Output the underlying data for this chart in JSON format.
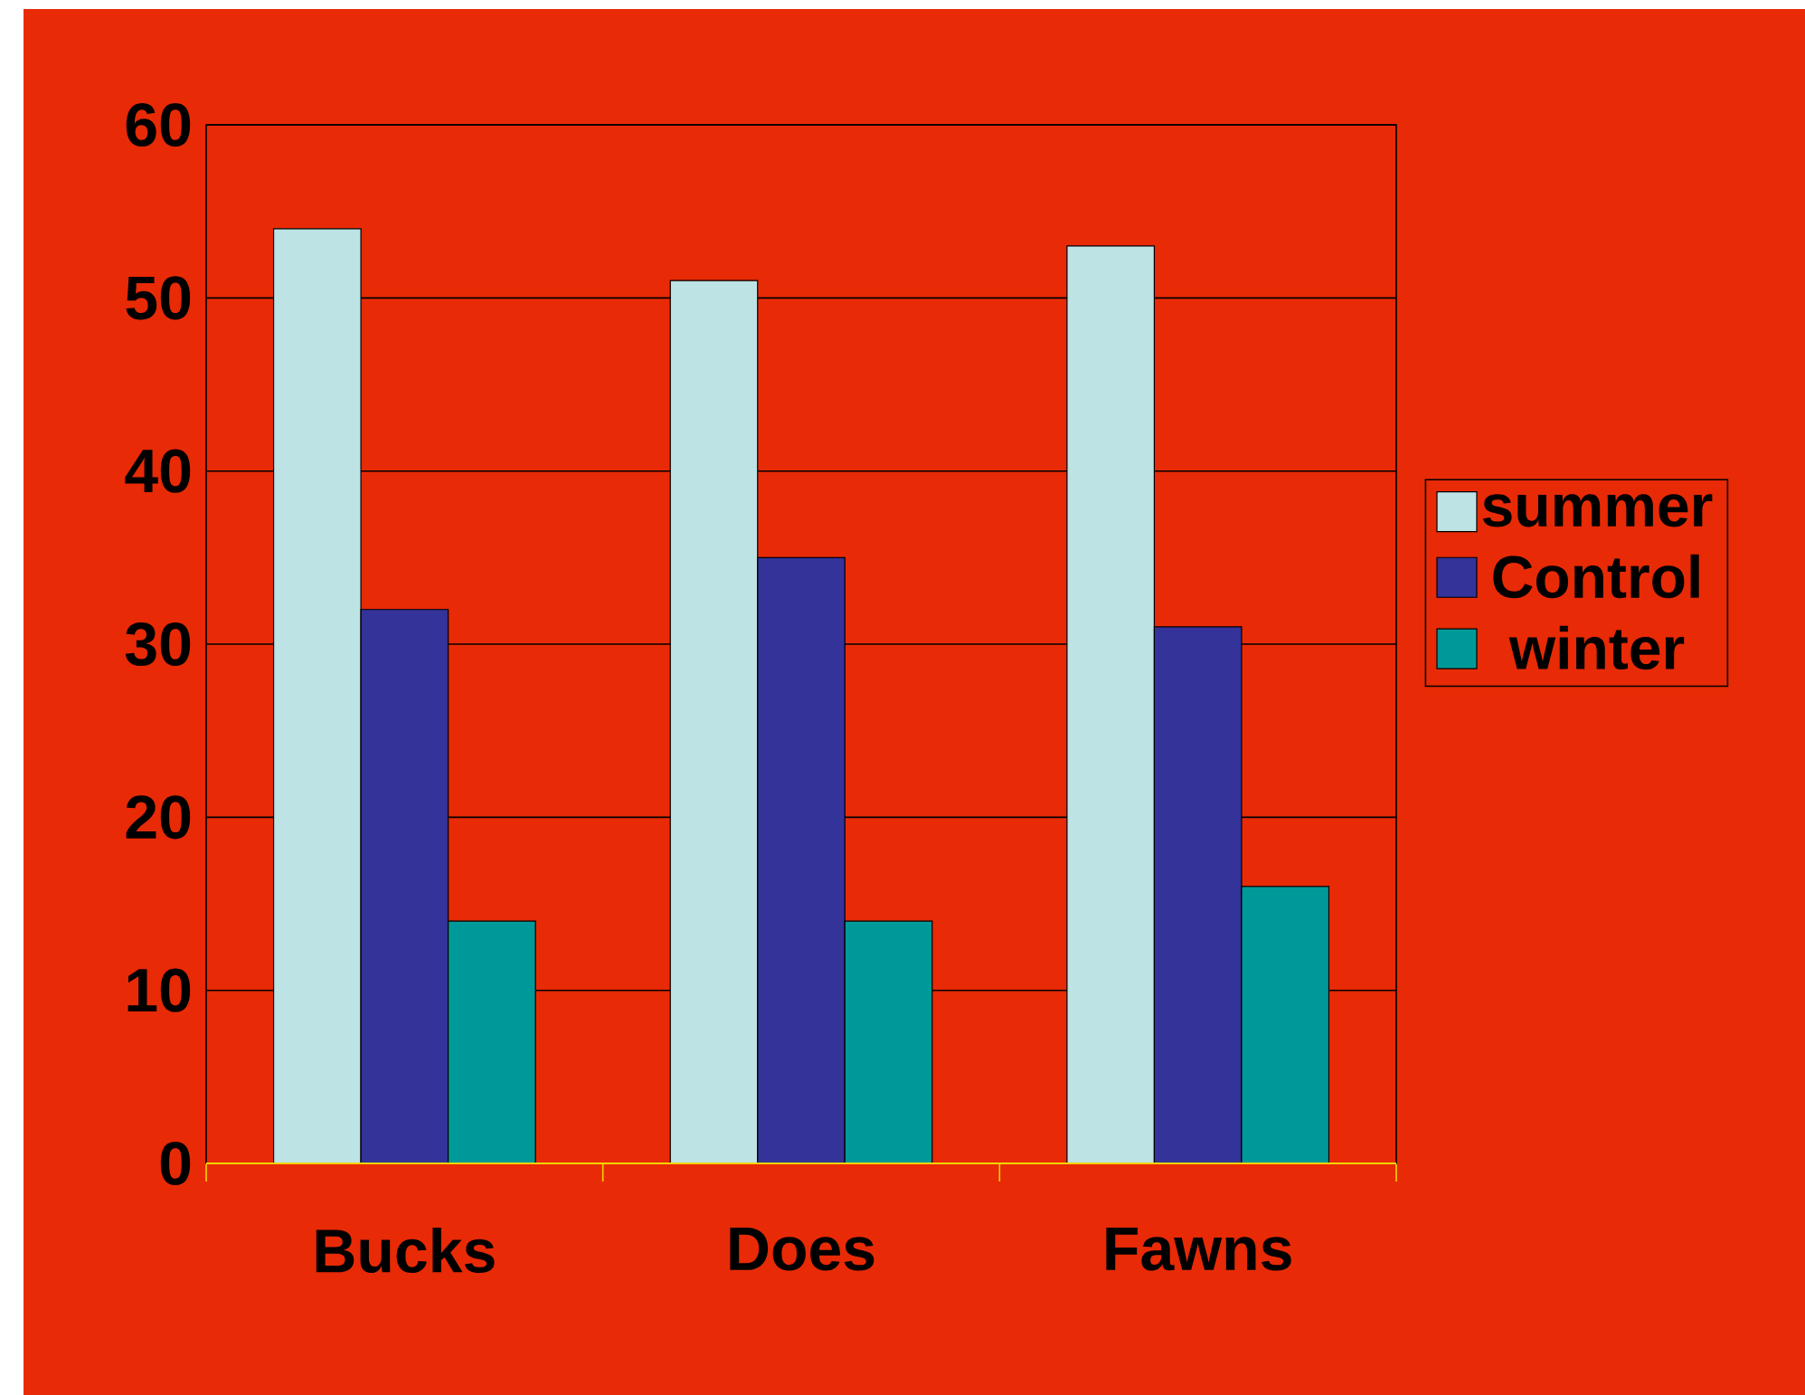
{
  "chart_data": {
    "type": "bar",
    "categories": [
      "Bucks",
      "Does",
      "Fawns"
    ],
    "series": [
      {
        "name": "summer",
        "color": "#bde3e5",
        "values": [
          54,
          51,
          53
        ]
      },
      {
        "name": "Control",
        "color": "#333399",
        "values": [
          32,
          35,
          31
        ]
      },
      {
        "name": "winter",
        "color": "#009999",
        "values": [
          14,
          14,
          16
        ]
      }
    ],
    "ylim": [
      0,
      60
    ],
    "yticks": [
      0,
      10,
      20,
      30,
      40,
      50,
      60
    ],
    "grid": "y",
    "legend": "right"
  }
}
